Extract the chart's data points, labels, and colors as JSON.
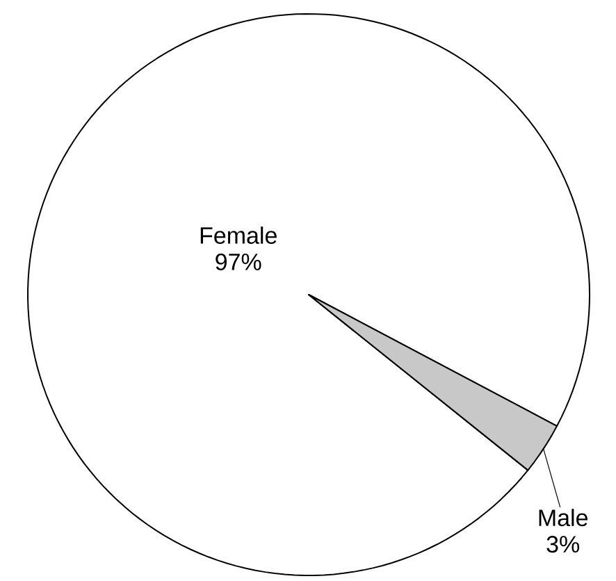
{
  "chart_data": {
    "type": "pie",
    "categories": [
      "Female",
      "Male"
    ],
    "values": [
      97,
      3
    ],
    "value_labels": [
      "97%",
      "3%"
    ],
    "colors": [
      "#ffffff",
      "#c8c8c8"
    ]
  }
}
